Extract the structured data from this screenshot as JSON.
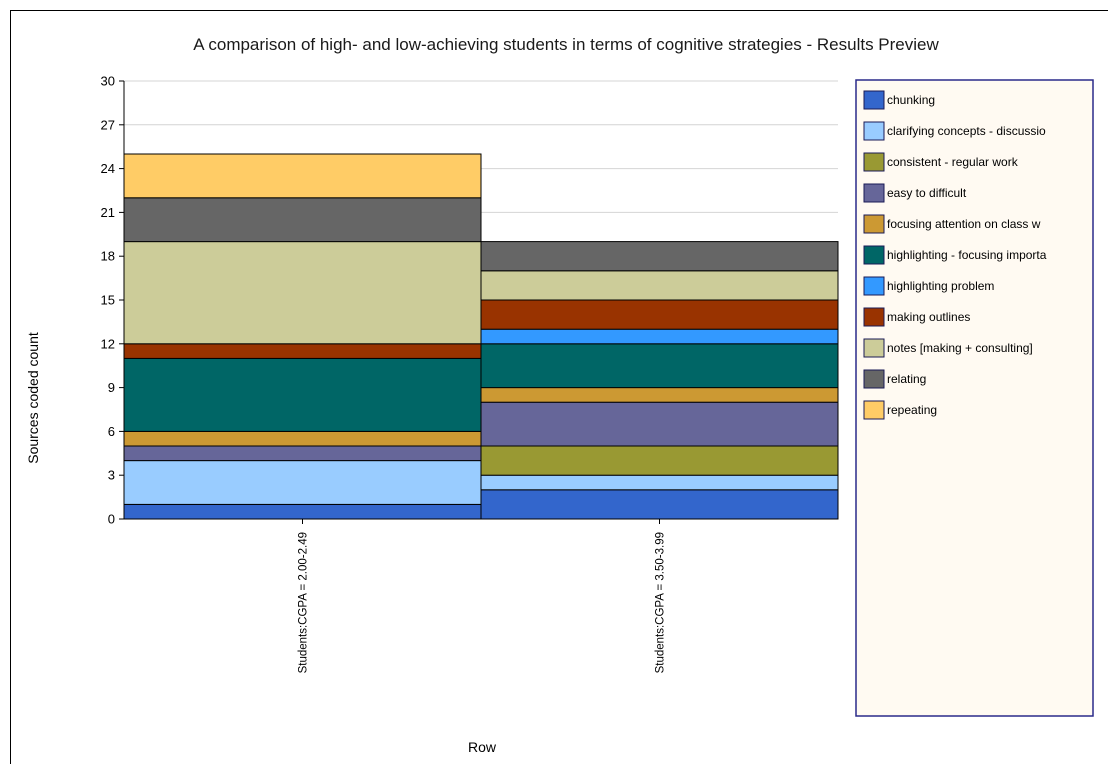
{
  "chart_data": {
    "type": "bar",
    "stacked": true,
    "title": "A comparison of high- and low-achieving students in terms of cognitive strategies - Results Preview",
    "xlabel": "Row",
    "ylabel": "Sources coded count",
    "ylim": [
      0,
      30
    ],
    "yticks": [
      0,
      3,
      6,
      9,
      12,
      15,
      18,
      21,
      24,
      27,
      30
    ],
    "grid": true,
    "legend_position": "right",
    "categories": [
      "Students:CGPA = 2.00-2.49",
      "Students:CGPA = 3.50-3.99"
    ],
    "series": [
      {
        "name": "chunking",
        "color": "#3366cc",
        "values": [
          1,
          2
        ]
      },
      {
        "name": "clarifying concepts - discussio",
        "color": "#99ccff",
        "values": [
          3,
          1
        ]
      },
      {
        "name": "consistent - regular work",
        "color": "#999933",
        "values": [
          0,
          2
        ]
      },
      {
        "name": "easy to difficult",
        "color": "#666699",
        "values": [
          1,
          3
        ]
      },
      {
        "name": "focusing attention on class w",
        "color": "#cc9933",
        "values": [
          1,
          1
        ]
      },
      {
        "name": "highlighting - focusing importa",
        "color": "#006666",
        "values": [
          5,
          3
        ]
      },
      {
        "name": "highlighting problem",
        "color": "#3399ff",
        "values": [
          0,
          1
        ]
      },
      {
        "name": "making outlines",
        "color": "#993300",
        "values": [
          1,
          2
        ]
      },
      {
        "name": "notes [making + consulting]",
        "color": "#cccc99",
        "values": [
          7,
          2
        ]
      },
      {
        "name": "relating",
        "color": "#666666",
        "values": [
          3,
          2
        ]
      },
      {
        "name": "repeating",
        "color": "#ffcc66",
        "values": [
          3,
          0
        ]
      }
    ]
  }
}
